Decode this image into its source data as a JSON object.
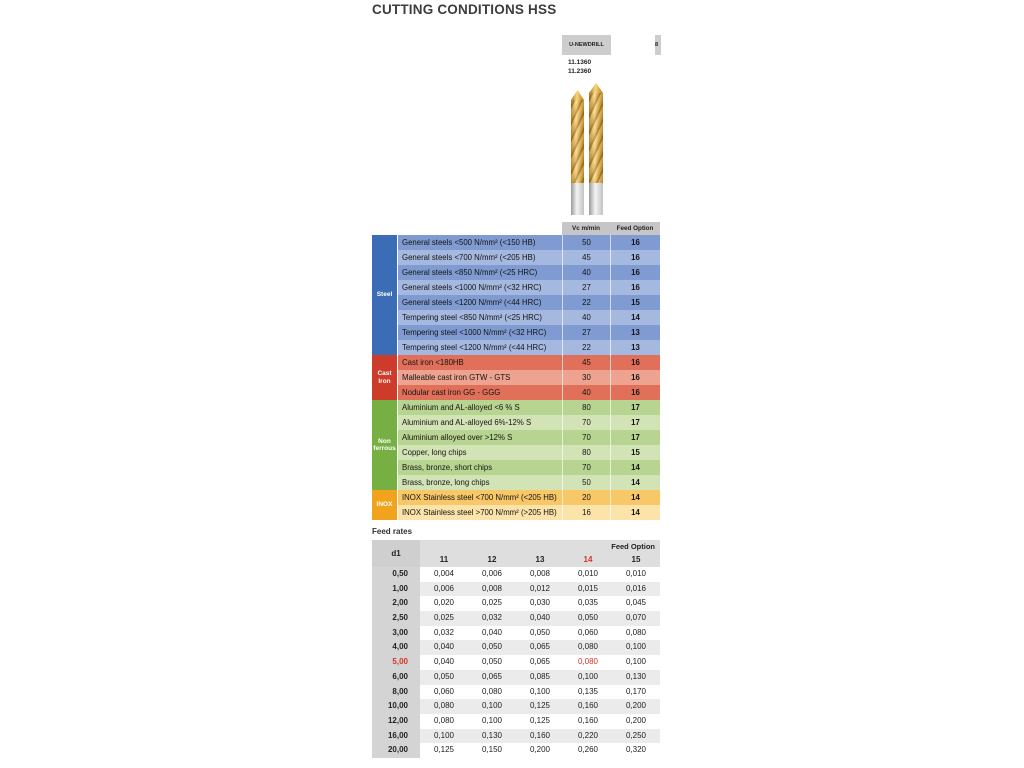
{
  "page": {
    "title": "CUTTING CONDITIONS HSS"
  },
  "product": {
    "name": "U-NEWDRILL",
    "codes": [
      "11.1360",
      "11.2360"
    ],
    "adjacent_partial": "8"
  },
  "conditions_table": {
    "col_headers": [
      "Vc m/min",
      "Feed Option"
    ],
    "groups": [
      {
        "name": "Steel",
        "color": "#3a6db5",
        "row_colors": [
          "#7f9bd1",
          "#a5b8e0"
        ],
        "rows": [
          {
            "label": "General steels <500 N/mm²  (<150 HB)",
            "vc": "50",
            "feed": "16"
          },
          {
            "label": "General steels <700 N/mm²  (<205 HB)",
            "vc": "45",
            "feed": "16"
          },
          {
            "label": "General steels <850 N/mm²  (<25 HRC)",
            "vc": "40",
            "feed": "16"
          },
          {
            "label": "General steels <1000 N/mm² (<32 HRC)",
            "vc": "27",
            "feed": "16"
          },
          {
            "label": "General steels <1200 N/mm²  (<44 HRC)",
            "vc": "22",
            "feed": "15"
          },
          {
            "label": "Tempering steel  <850 N/mm²  (<25 HRC)",
            "vc": "40",
            "feed": "14"
          },
          {
            "label": "Tempering steel  <1000 N/mm²  (<32 HRC)",
            "vc": "27",
            "feed": "13"
          },
          {
            "label": "Tempering steel  <1200 N/mm²  (<44 HRC)",
            "vc": "22",
            "feed": "13"
          }
        ]
      },
      {
        "name": "Cast Iron",
        "color": "#cd3b2a",
        "row_colors": [
          "#e1705a",
          "#eda38f"
        ],
        "rows": [
          {
            "label": "Cast iron <180HB",
            "vc": "45",
            "feed": "16"
          },
          {
            "label": "Malleable cast iron GTW - GTS",
            "vc": "30",
            "feed": "16"
          },
          {
            "label": "Nodular cast iron  GG - GGG",
            "vc": "40",
            "feed": "16"
          }
        ]
      },
      {
        "name": "Non ferrous",
        "color": "#76b043",
        "row_colors": [
          "#b7d490",
          "#d2e4b6"
        ],
        "rows": [
          {
            "label": "Aluminium and AL-alloyed   <6 % S",
            "vc": "80",
            "feed": "17"
          },
          {
            "label": "Aluminium and AL-alloyed 6%-12% S",
            "vc": "70",
            "feed": "17"
          },
          {
            "label": "Aluminium alloyed over   >12% S",
            "vc": "70",
            "feed": "17"
          },
          {
            "label": "Copper, long chips",
            "vc": "80",
            "feed": "15"
          },
          {
            "label": "Brass, bronze, short chips",
            "vc": "70",
            "feed": "14"
          },
          {
            "label": "Brass, bronze, long chips",
            "vc": "50",
            "feed": "14"
          }
        ]
      },
      {
        "name": "INOX",
        "color": "#f2a31d",
        "row_colors": [
          "#f8c768",
          "#fbe3a9"
        ],
        "rows": [
          {
            "label": "INOX Stainless steel  <700 N/mm² (<205 HB)",
            "vc": "20",
            "feed": "14"
          },
          {
            "label": "INOX Stainless steel  >700 N/mm² (>205 HB)",
            "vc": "16",
            "feed": "14"
          }
        ]
      }
    ]
  },
  "feed_rates": {
    "label": "Feed rates",
    "corner_label": "d1",
    "header_label": "Feed Option",
    "columns": [
      "11",
      "12",
      "13",
      "14",
      "15"
    ],
    "highlight_column": "14",
    "highlight_row": "5,00",
    "rows": [
      {
        "d1": "0,50",
        "values": [
          "0,004",
          "0,006",
          "0,008",
          "0,010",
          "0,010"
        ]
      },
      {
        "d1": "1,00",
        "values": [
          "0,006",
          "0,008",
          "0,012",
          "0,015",
          "0,016"
        ]
      },
      {
        "d1": "2,00",
        "values": [
          "0,020",
          "0,025",
          "0,030",
          "0,035",
          "0,045"
        ]
      },
      {
        "d1": "2,50",
        "values": [
          "0,025",
          "0,032",
          "0,040",
          "0,050",
          "0,070"
        ]
      },
      {
        "d1": "3,00",
        "values": [
          "0,032",
          "0,040",
          "0,050",
          "0,060",
          "0,080"
        ]
      },
      {
        "d1": "4,00",
        "values": [
          "0,040",
          "0,050",
          "0,065",
          "0,080",
          "0,100"
        ]
      },
      {
        "d1": "5,00",
        "values": [
          "0,040",
          "0,050",
          "0,065",
          "0,080",
          "0,100"
        ]
      },
      {
        "d1": "6,00",
        "values": [
          "0,050",
          "0,065",
          "0,085",
          "0,100",
          "0,130"
        ]
      },
      {
        "d1": "8,00",
        "values": [
          "0,060",
          "0,080",
          "0,100",
          "0,135",
          "0,170"
        ]
      },
      {
        "d1": "10,00",
        "values": [
          "0,080",
          "0,100",
          "0,125",
          "0,160",
          "0,200"
        ]
      },
      {
        "d1": "12,00",
        "values": [
          "0,080",
          "0,100",
          "0,125",
          "0,160",
          "0,200"
        ]
      },
      {
        "d1": "16,00",
        "values": [
          "0,100",
          "0,130",
          "0,160",
          "0,220",
          "0,250"
        ]
      },
      {
        "d1": "20,00",
        "values": [
          "0,125",
          "0,150",
          "0,200",
          "0,260",
          "0,320"
        ]
      }
    ]
  },
  "colors": {
    "highlight_red": "#d4342a"
  }
}
